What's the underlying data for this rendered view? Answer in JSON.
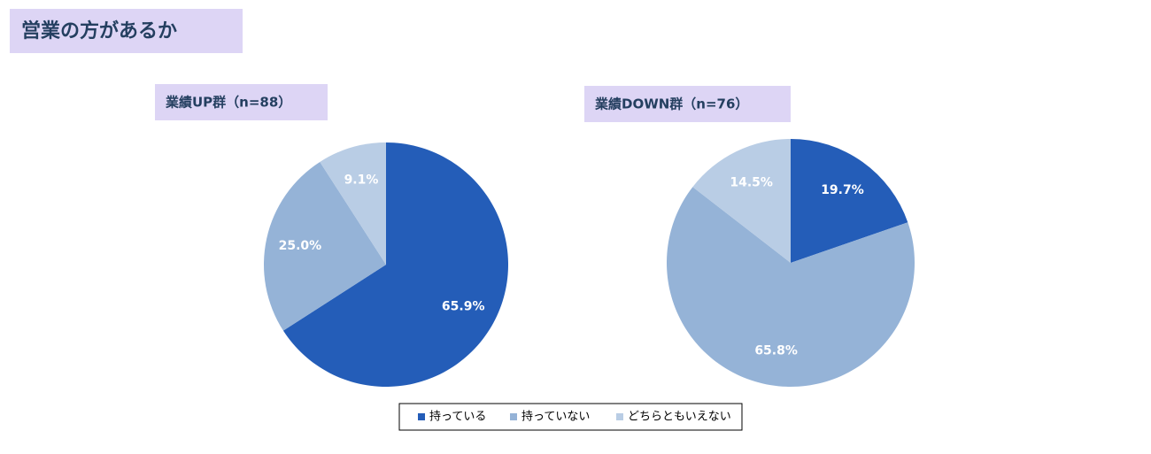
{
  "title": "営業の方があるか",
  "legend": {
    "categories": [
      "持っている",
      "持っていない",
      "どちらともいえない"
    ],
    "colors": [
      "#245db8",
      "#95b3d7",
      "#b9cde5"
    ]
  },
  "chart_data": [
    {
      "type": "pie",
      "title": "業績UP群（n=88）",
      "values": [
        65.9,
        25.0,
        9.1
      ],
      "value_labels": [
        "65.9%",
        "25.0%",
        "9.1%"
      ]
    },
    {
      "type": "pie",
      "title": "業績DOWN群（n=76）",
      "values": [
        19.7,
        65.8,
        14.5
      ],
      "value_labels": [
        "19.7%",
        "65.8%",
        "14.5%"
      ]
    }
  ]
}
